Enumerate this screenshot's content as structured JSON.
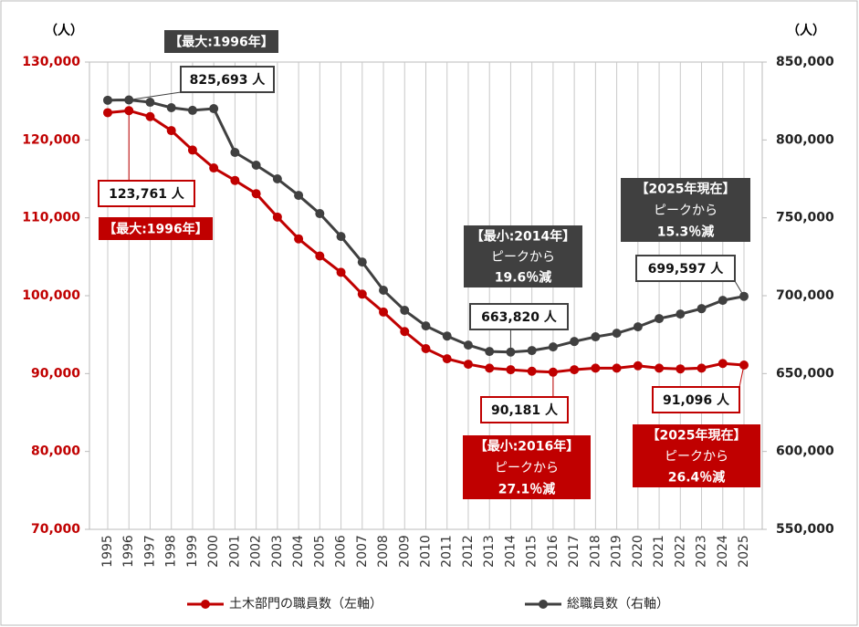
{
  "chart_data": {
    "type": "line",
    "y_label": "（人）",
    "y2_label": "（人）",
    "categories": [
      "1995",
      "1996",
      "1997",
      "1998",
      "1999",
      "2000",
      "2001",
      "2002",
      "2003",
      "2004",
      "2005",
      "2006",
      "2007",
      "2008",
      "2009",
      "2010",
      "2011",
      "2012",
      "2013",
      "2014",
      "2015",
      "2016",
      "2017",
      "2018",
      "2019",
      "2020",
      "2021",
      "2022",
      "2023",
      "2024",
      "2025"
    ],
    "ylim": [
      70000,
      130000
    ],
    "yticks": [
      {
        "value": 70000,
        "label": "70,000"
      },
      {
        "value": 80000,
        "label": "80,000"
      },
      {
        "value": 90000,
        "label": "90,000"
      },
      {
        "value": 100000,
        "label": "100,000"
      },
      {
        "value": 110000,
        "label": "110,000"
      },
      {
        "value": 120000,
        "label": "120,000"
      },
      {
        "value": 130000,
        "label": "130,000"
      }
    ],
    "y2lim": [
      550000,
      850000
    ],
    "y2ticks": [
      {
        "value": 550000,
        "label": "550,000"
      },
      {
        "value": 600000,
        "label": "600,000"
      },
      {
        "value": 650000,
        "label": "650,000"
      },
      {
        "value": 700000,
        "label": "700,000"
      },
      {
        "value": 750000,
        "label": "750,000"
      },
      {
        "value": 800000,
        "label": "800,000"
      },
      {
        "value": 850000,
        "label": "850,000"
      }
    ],
    "grid": "x",
    "legend": "bottom",
    "series": [
      {
        "name": "土木部門の職員数（左軸）",
        "color": "#c00000",
        "axis": "y",
        "values": [
          123500,
          123761,
          123000,
          121200,
          118700,
          116400,
          114800,
          113100,
          110100,
          107300,
          105100,
          103000,
          100200,
          97900,
          95400,
          93200,
          91900,
          91200,
          90700,
          90500,
          90300,
          90181,
          90500,
          90700,
          90700,
          91000,
          90700,
          90600,
          90700,
          91300,
          91096
        ],
        "value_labels": [
          null,
          "123,761 人",
          null,
          null,
          null,
          null,
          null,
          null,
          null,
          null,
          null,
          null,
          null,
          null,
          null,
          null,
          null,
          null,
          null,
          null,
          null,
          "90,181 人",
          null,
          null,
          null,
          null,
          null,
          null,
          null,
          null,
          "91,096 人"
        ]
      },
      {
        "name": "総職員数（右軸）",
        "color": "#404040",
        "axis": "y2",
        "values": [
          825500,
          825693,
          824200,
          820700,
          819000,
          820100,
          792000,
          783800,
          775000,
          764400,
          752700,
          738000,
          721600,
          703500,
          690600,
          680600,
          674100,
          668300,
          664200,
          663820,
          664800,
          667100,
          670600,
          673600,
          675900,
          680000,
          685300,
          688200,
          691700,
          697000,
          699597
        ],
        "value_labels": [
          null,
          "825,693 人",
          null,
          null,
          null,
          null,
          null,
          null,
          null,
          null,
          null,
          null,
          null,
          null,
          null,
          null,
          null,
          null,
          null,
          "663,820 人",
          null,
          null,
          null,
          null,
          null,
          null,
          null,
          null,
          null,
          null,
          "699,597 人"
        ]
      }
    ],
    "annotations": [
      {
        "lines": [
          "【最大:1996年】"
        ],
        "color": "#404040"
      },
      {
        "lines": [
          "【最大:1996年】"
        ],
        "color": "#c00000"
      },
      {
        "lines": [
          "【最小:2014年】",
          "ピークから",
          "19.6％減"
        ],
        "color": "#404040"
      },
      {
        "lines": [
          "【2025年現在】",
          "ピークから",
          "15.3％減"
        ],
        "color": "#404040"
      },
      {
        "lines": [
          "【最小:2016年】",
          "ピークから",
          "27.1％減"
        ],
        "color": "#c00000"
      },
      {
        "lines": [
          "【2025年現在】",
          "ピークから",
          "26.4％減"
        ],
        "color": "#c00000"
      }
    ]
  }
}
